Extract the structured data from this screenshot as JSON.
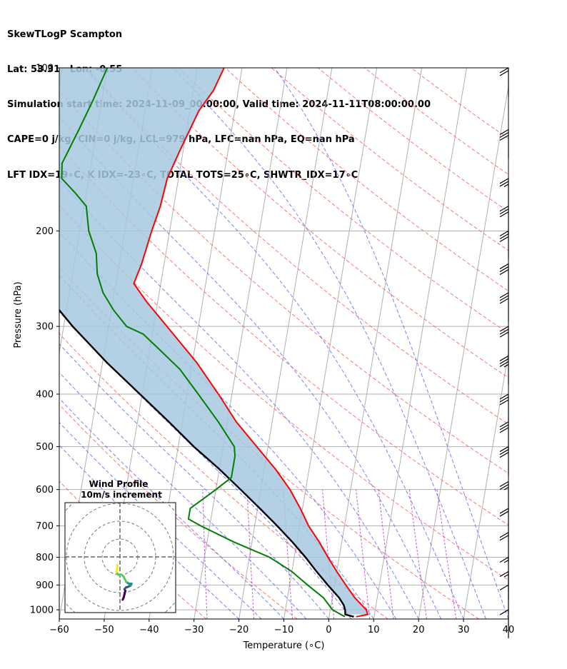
{
  "titles": {
    "line1": "SkewTLogP Scampton",
    "line2": "Lat: 53.31   Lon: -0.55",
    "line3": "Simulation start time: 2024-11-09_00:00:00, Valid time: 2024-11-11T08:00:00.00",
    "line4": "CAPE=0 j/kg, CIN=0 j/kg, LCL=979 hPa, LFC=nan hPa, EQ=nan hPa",
    "line5": "LFT IDX=19∘C, K IDX=-23∘C, TOTAL TOTS=25∘C, SHWTR_IDX=17∘C"
  },
  "colors": {
    "temperature": "#ff0000",
    "dewpoint": "#008000",
    "parcel": "#000000",
    "cape_fill": "#a6c8e0",
    "dry_adiabats": "#ff6666",
    "moist_adiabats": "#6666ff",
    "isotherms": "#b0b0b0",
    "mixing_ratio": "#b040c0",
    "hodo_colors": [
      "#440154",
      "#3b528b",
      "#21918c",
      "#5ec962",
      "#fde725"
    ]
  },
  "chart_data": [
    {
      "type": "line",
      "title": "SkewTLogP Scampton",
      "xlabel": "Temperature (∘C)",
      "ylabel": "Pressure (hPa)",
      "xlim": [
        -60,
        40
      ],
      "ylim": [
        1040,
        100
      ],
      "y_scale": "log",
      "x_ticks": [
        -60,
        -50,
        -40,
        -30,
        -20,
        -10,
        0,
        10,
        20,
        30,
        40
      ],
      "y_ticks": [
        1000,
        900,
        800,
        700,
        600,
        500,
        400,
        300,
        200,
        100
      ],
      "grid": true,
      "series": [
        {
          "name": "Temperature",
          "pressure": [
            1030,
            1020,
            1000,
            950,
            900,
            850,
            800,
            750,
            700,
            650,
            600,
            550,
            500,
            450,
            400,
            350,
            300,
            270,
            250,
            230,
            200,
            180,
            160,
            140,
            120,
            110,
            100
          ],
          "values": [
            6,
            8.5,
            8,
            5,
            2.5,
            0,
            -2.5,
            -5,
            -8,
            -10.5,
            -13.5,
            -17.5,
            -22.5,
            -28,
            -33,
            -39,
            -47,
            -52.5,
            -56,
            -55,
            -54,
            -53,
            -52.5,
            -50.5,
            -48,
            -45.5,
            -44
          ]
        },
        {
          "name": "Dewpoint",
          "pressure": [
            1030,
            1010,
            1000,
            980,
            950,
            900,
            850,
            800,
            750,
            700,
            680,
            650,
            600,
            570,
            550,
            520,
            500,
            450,
            400,
            360,
            330,
            310,
            300,
            280,
            260,
            240,
            220,
            200,
            180,
            170,
            160,
            150,
            130,
            115,
            100
          ],
          "values": [
            3.5,
            1.5,
            0.5,
            -0.5,
            -2,
            -6,
            -10,
            -15.5,
            -24,
            -32,
            -35,
            -35,
            -30,
            -27,
            -27,
            -27,
            -27.5,
            -32,
            -37.5,
            -42.5,
            -48,
            -52,
            -56,
            -59.5,
            -62.5,
            -64.5,
            -65.5,
            -68,
            -69.5,
            -72.5,
            -76,
            -76.5,
            -74,
            -72,
            -70
          ]
        },
        {
          "name": "Parcel",
          "pressure": [
            1030,
            1020,
            1000,
            980,
            950,
            900,
            850,
            800,
            750,
            700,
            650,
            600,
            550,
            500,
            450,
            400,
            350,
            300,
            250,
            200,
            150,
            120,
            100
          ],
          "values": [
            5.5,
            3.5,
            3.3,
            2.8,
            1.5,
            -1.5,
            -4.5,
            -7.5,
            -11,
            -15,
            -19.5,
            -24.5,
            -30,
            -36.5,
            -43,
            -50.5,
            -59,
            -68,
            -77.5,
            -88,
            -99,
            -106,
            -111
          ]
        }
      ],
      "annotations": [
        "CAPE shaded region between parcel and temperature profile"
      ]
    },
    {
      "type": "line",
      "title": "Wind Profile",
      "subtitle": "10m/s increment",
      "ring_increment_ms": 10,
      "series": [
        {
          "name": "hodograph",
          "u": [
            1.5,
            2,
            2.5,
            3,
            2.5,
            3.5,
            4,
            5,
            6,
            6.5,
            5,
            3.5,
            2,
            1,
            -1,
            -2,
            -1.5,
            -1.5,
            -1.5
          ],
          "v": [
            -24,
            -23,
            -21,
            -19,
            -18,
            -17,
            -17,
            -16.5,
            -16,
            -15,
            -15,
            -14,
            -11,
            -10,
            -10,
            -8.5,
            -6,
            -5,
            -4.5
          ]
        }
      ]
    }
  ],
  "wind_barbs": [
    {
      "pressure": 100,
      "flags": 0,
      "full": 2,
      "half": 0
    },
    {
      "pressure": 130,
      "flags": 0,
      "full": 3,
      "half": 0
    },
    {
      "pressure": 160,
      "flags": 0,
      "full": 2,
      "half": 1
    },
    {
      "pressure": 180,
      "flags": 0,
      "full": 3,
      "half": 0
    },
    {
      "pressure": 200,
      "flags": 0,
      "full": 3,
      "half": 0
    },
    {
      "pressure": 230,
      "flags": 0,
      "full": 3,
      "half": 0
    },
    {
      "pressure": 260,
      "flags": 0,
      "full": 3,
      "half": 0
    },
    {
      "pressure": 300,
      "flags": 0,
      "full": 3,
      "half": 0
    },
    {
      "pressure": 340,
      "flags": 0,
      "full": 3,
      "half": 1
    },
    {
      "pressure": 400,
      "flags": 0,
      "full": 3,
      "half": 0
    },
    {
      "pressure": 450,
      "flags": 0,
      "full": 3,
      "half": 0
    },
    {
      "pressure": 500,
      "flags": 0,
      "full": 3,
      "half": 0
    },
    {
      "pressure": 580,
      "flags": 0,
      "full": 2,
      "half": 1
    },
    {
      "pressure": 650,
      "flags": 0,
      "full": 2,
      "half": 0
    },
    {
      "pressure": 720,
      "flags": 0,
      "full": 2,
      "half": 0
    },
    {
      "pressure": 800,
      "flags": 0,
      "full": 1,
      "half": 1
    },
    {
      "pressure": 850,
      "flags": 0,
      "full": 1,
      "half": 1
    },
    {
      "pressure": 900,
      "flags": 0,
      "full": 1,
      "half": 0
    },
    {
      "pressure": 1000,
      "flags": 0,
      "full": 1,
      "half": 0
    }
  ]
}
